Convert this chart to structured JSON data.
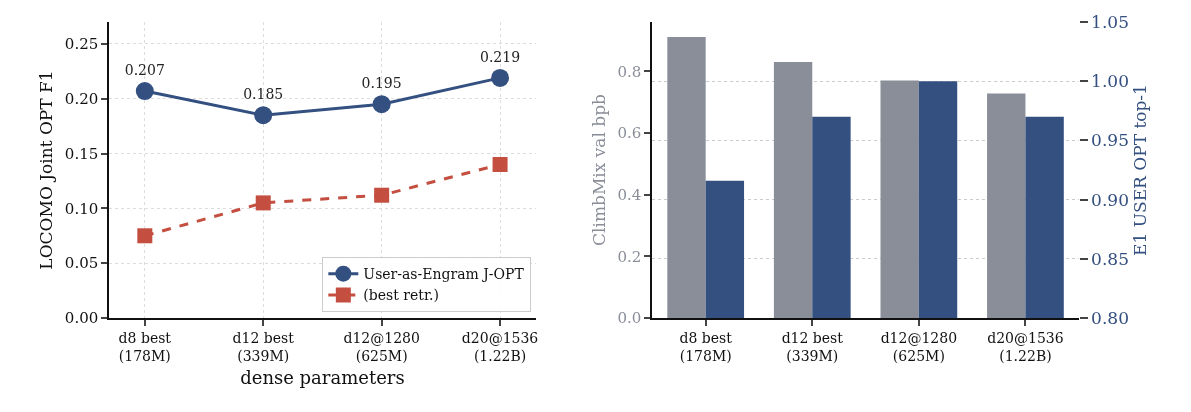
{
  "chart_data": [
    {
      "type": "line",
      "xlabel": "dense parameters",
      "ylabel": "LOCOMO Joint OPT F1",
      "categories": [
        "d8 best\n(178M)",
        "d12 best\n(339M)",
        "d12@1280\n(625M)",
        "d20@1536\n(1.22B)"
      ],
      "series": [
        {
          "name": "User-as-Engram J-OPT",
          "color": "#345080",
          "marker": "circle",
          "line_style": "solid",
          "values": [
            0.207,
            0.185,
            0.195,
            0.219
          ],
          "value_labels": [
            "0.207",
            "0.185",
            "0.195",
            "0.219"
          ]
        },
        {
          "name": "(best retr.)",
          "color": "#c44e3f",
          "marker": "square",
          "line_style": "dashed",
          "values": [
            0.075,
            0.105,
            0.112,
            0.14
          ]
        }
      ],
      "ylim": [
        0,
        0.27
      ],
      "yticks": [
        {
          "value": 0,
          "label": "0.00"
        },
        {
          "value": 0.05,
          "label": "0.05"
        },
        {
          "value": 0.1,
          "label": "0.10"
        },
        {
          "value": 0.15,
          "label": "0.15"
        },
        {
          "value": 0.2,
          "label": "0.20"
        },
        {
          "value": 0.25,
          "label": "0.25"
        }
      ],
      "grid": true,
      "legend": "bottom right"
    },
    {
      "type": "bar",
      "ylabel": "ClimbMix val bpb",
      "y2label": "E1 USER OPT top-1",
      "categories": [
        "d8 best\n(178M)",
        "d12 best\n(339M)",
        "d12@1280\n(625M)",
        "d20@1536\n(1.22B)"
      ],
      "series": [
        {
          "color": "#8a8e99",
          "axis": "y",
          "values": [
            0.911,
            0.83,
            0.77,
            0.728
          ]
        },
        {
          "color": "#345080",
          "axis": "y2",
          "values": [
            0.916,
            0.97,
            1.0,
            0.97
          ]
        }
      ],
      "ylim": [
        0,
        0.96
      ],
      "yticks": [
        {
          "value": 0,
          "label": "0.0"
        },
        0.2,
        0.4,
        0.6,
        0.8
      ],
      "y2lim": [
        0.8,
        1.05
      ],
      "y2ticks": [
        {
          "value": 0.8,
          "label": "0.80"
        },
        0.85,
        {
          "value": 0.9,
          "label": "0.90"
        },
        0.95,
        {
          "value": 1.0,
          "label": "1.00"
        },
        1.05
      ],
      "grid": "y",
      "legend": false
    }
  ]
}
